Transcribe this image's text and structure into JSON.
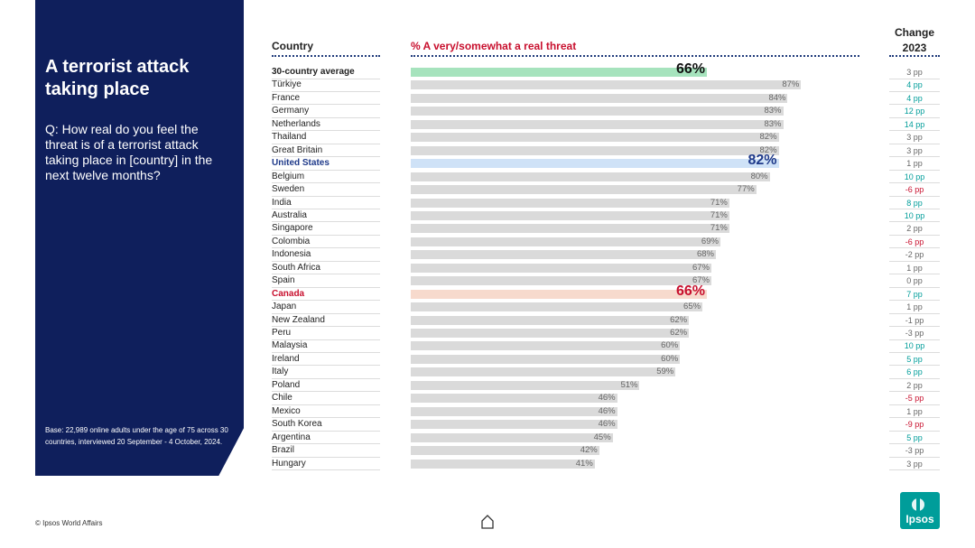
{
  "panel": {
    "title": "A terrorist attack taking place",
    "question": "Q: How real do you feel the threat is of a terrorist attack taking place in [country] in the next twelve months?",
    "base": "Base: 22,989 online adults under the age of 75 across 30 countries, interviewed 20 September - 4 October, 2024."
  },
  "headers": {
    "country": "Country",
    "metric": "% A very/somewhat a real threat",
    "change": "Change",
    "change_year": "2023"
  },
  "colors": {
    "panel": "#0f1f5c",
    "positive_change": "#009d9a",
    "negative_change": "#c8102e",
    "neutral_change": "#666666",
    "average_bar": "#a6e3bd",
    "us_bar": "#cfe2f7",
    "canada_bar": "#f7dacd",
    "default_bar": "#dadada"
  },
  "footer": {
    "source": "© Ipsos World Affairs",
    "logo": "Ipsos",
    "home_icon": "home-icon"
  },
  "chart_data": {
    "type": "bar",
    "orientation": "horizontal",
    "xlim": [
      0,
      100
    ],
    "rows": [
      {
        "country": "30-country average",
        "value": 66,
        "label": "66%",
        "change": "3 pp",
        "trend": "neutral",
        "highlight": "avg"
      },
      {
        "country": "Türkiye",
        "value": 87,
        "label": "87%",
        "change": "4 pp",
        "trend": "up"
      },
      {
        "country": "France",
        "value": 84,
        "label": "84%",
        "change": "4 pp",
        "trend": "up"
      },
      {
        "country": "Germany",
        "value": 83,
        "label": "83%",
        "change": "12 pp",
        "trend": "up"
      },
      {
        "country": "Netherlands",
        "value": 83,
        "label": "83%",
        "change": "14 pp",
        "trend": "up"
      },
      {
        "country": "Thailand",
        "value": 82,
        "label": "82%",
        "change": "3 pp",
        "trend": "neutral"
      },
      {
        "country": "Great Britain",
        "value": 82,
        "label": "82%",
        "change": "3 pp",
        "trend": "neutral"
      },
      {
        "country": "United States",
        "value": 82,
        "label": "82%",
        "change": "1 pp",
        "trend": "neutral",
        "highlight": "us"
      },
      {
        "country": "Belgium",
        "value": 80,
        "label": "80%",
        "change": "10 pp",
        "trend": "up"
      },
      {
        "country": "Sweden",
        "value": 77,
        "label": "77%",
        "change": "-6 pp",
        "trend": "down"
      },
      {
        "country": "India",
        "value": 71,
        "label": "71%",
        "change": "8 pp",
        "trend": "up"
      },
      {
        "country": "Australia",
        "value": 71,
        "label": "71%",
        "change": "10 pp",
        "trend": "up"
      },
      {
        "country": "Singapore",
        "value": 71,
        "label": "71%",
        "change": "2 pp",
        "trend": "neutral"
      },
      {
        "country": "Colombia",
        "value": 69,
        "label": "69%",
        "change": "-6 pp",
        "trend": "down"
      },
      {
        "country": "Indonesia",
        "value": 68,
        "label": "68%",
        "change": "-2 pp",
        "trend": "neutral"
      },
      {
        "country": "South Africa",
        "value": 67,
        "label": "67%",
        "change": "1 pp",
        "trend": "neutral"
      },
      {
        "country": "Spain",
        "value": 67,
        "label": "67%",
        "change": "0 pp",
        "trend": "neutral"
      },
      {
        "country": "Canada",
        "value": 66,
        "label": "66%",
        "change": "7 pp",
        "trend": "up",
        "highlight": "ca"
      },
      {
        "country": "Japan",
        "value": 65,
        "label": "65%",
        "change": "1 pp",
        "trend": "neutral"
      },
      {
        "country": "New Zealand",
        "value": 62,
        "label": "62%",
        "change": "-1 pp",
        "trend": "neutral"
      },
      {
        "country": "Peru",
        "value": 62,
        "label": "62%",
        "change": "-3 pp",
        "trend": "neutral"
      },
      {
        "country": "Malaysia",
        "value": 60,
        "label": "60%",
        "change": "10 pp",
        "trend": "up"
      },
      {
        "country": "Ireland",
        "value": 60,
        "label": "60%",
        "change": "5 pp",
        "trend": "up"
      },
      {
        "country": "Italy",
        "value": 59,
        "label": "59%",
        "change": "6 pp",
        "trend": "up"
      },
      {
        "country": "Poland",
        "value": 51,
        "label": "51%",
        "change": "2 pp",
        "trend": "neutral"
      },
      {
        "country": "Chile",
        "value": 46,
        "label": "46%",
        "change": "-5 pp",
        "trend": "down"
      },
      {
        "country": "Mexico",
        "value": 46,
        "label": "46%",
        "change": "1 pp",
        "trend": "neutral"
      },
      {
        "country": "South Korea",
        "value": 46,
        "label": "46%",
        "change": "-9 pp",
        "trend": "down"
      },
      {
        "country": "Argentina",
        "value": 45,
        "label": "45%",
        "change": "5 pp",
        "trend": "up"
      },
      {
        "country": "Brazil",
        "value": 42,
        "label": "42%",
        "change": "-3 pp",
        "trend": "neutral"
      },
      {
        "country": "Hungary",
        "value": 41,
        "label": "41%",
        "change": "3 pp",
        "trend": "neutral"
      }
    ]
  }
}
